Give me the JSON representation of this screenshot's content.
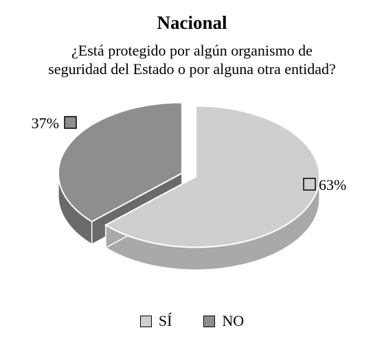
{
  "chart_data": {
    "type": "pie",
    "title": "Nacional",
    "subtitle_lines": [
      "¿Está protegido por algún organismo de",
      "seguridad del Estado o por alguna otra entidad?"
    ],
    "slices": [
      {
        "label": "SÍ",
        "value": 63,
        "value_label": "63%",
        "color": "#cfcfcf",
        "side_color": "#a9a9a9"
      },
      {
        "label": "NO",
        "value": 37,
        "value_label": "37%",
        "color": "#8e8e8e",
        "side_color": "#6a6a6a"
      }
    ],
    "unit": "%",
    "style": "3d-exploded",
    "legend_position": "bottom"
  }
}
